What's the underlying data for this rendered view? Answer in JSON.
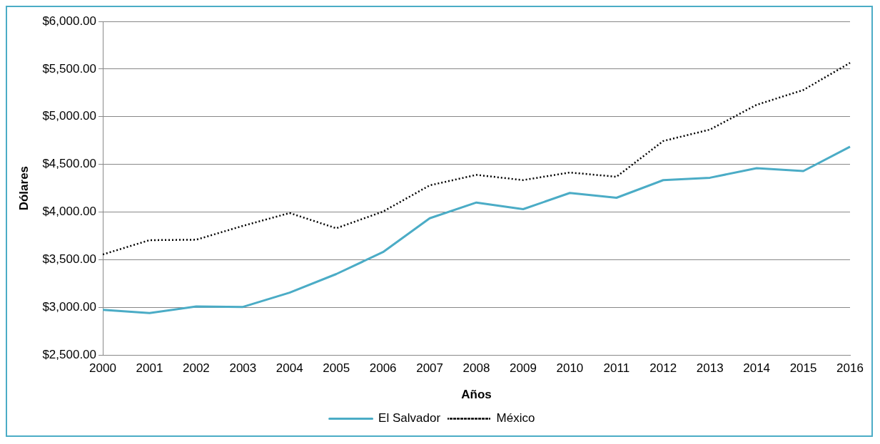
{
  "chart_data": {
    "type": "line",
    "xlabel": "Años",
    "ylabel": "Dólares",
    "categories": [
      "2000",
      "2001",
      "2002",
      "2003",
      "2004",
      "2005",
      "2006",
      "2007",
      "2008",
      "2009",
      "2010",
      "2011",
      "2012",
      "2013",
      "2014",
      "2015",
      "2016"
    ],
    "series": [
      {
        "name": "El Salvador",
        "color": "#4bacc6",
        "line_style": "solid",
        "values": [
          2975,
          2940,
          3010,
          3005,
          3155,
          3350,
          3580,
          3935,
          4100,
          4030,
          4200,
          4150,
          4335,
          4360,
          4460,
          4430,
          4685
        ]
      },
      {
        "name": "México",
        "color": "#000000",
        "line_style": "dotted",
        "values": [
          3555,
          3705,
          3710,
          3855,
          3990,
          3830,
          4005,
          4280,
          4390,
          4335,
          4415,
          4370,
          4745,
          4865,
          5125,
          5280,
          5565
        ]
      }
    ],
    "ylim": [
      2500,
      6000
    ],
    "yticks": [
      {
        "value": 2500,
        "label": "$2,500.00"
      },
      {
        "value": 3000,
        "label": "$3,000.00"
      },
      {
        "value": 3500,
        "label": "$3,500.00"
      },
      {
        "value": 4000,
        "label": "$4,000.00"
      },
      {
        "value": 4500,
        "label": "$4,500.00"
      },
      {
        "value": 5000,
        "label": "$5,000.00"
      },
      {
        "value": 5500,
        "label": "$5,500.00"
      },
      {
        "value": 6000,
        "label": "$6,000.00"
      }
    ],
    "grid": "y",
    "legend": "bottom",
    "marker": "none"
  }
}
